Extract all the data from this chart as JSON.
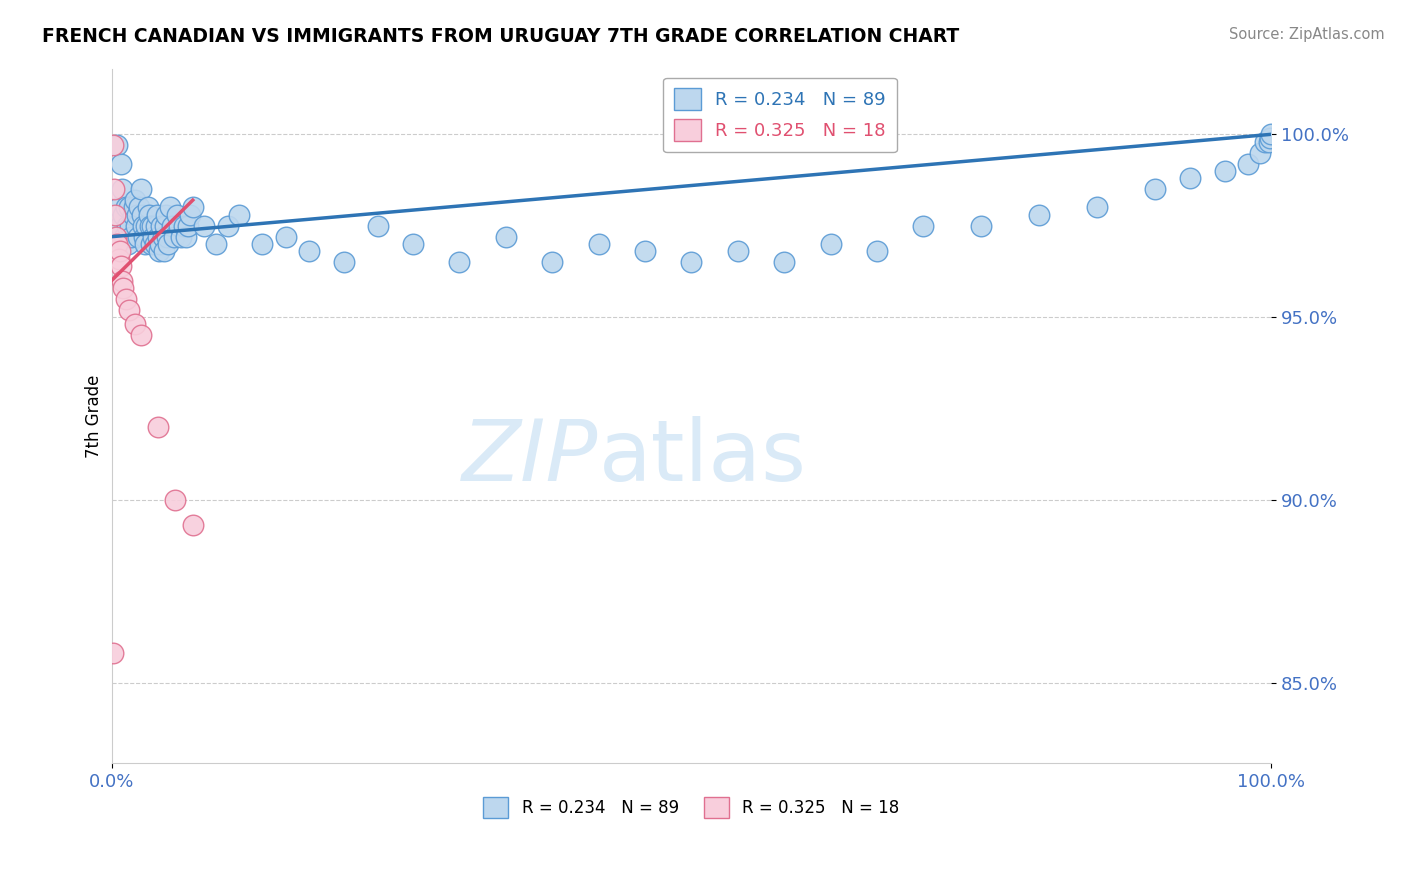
{
  "title": "FRENCH CANADIAN VS IMMIGRANTS FROM URUGUAY 7TH GRADE CORRELATION CHART",
  "source": "Source: ZipAtlas.com",
  "ylabel": "7th Grade",
  "xlim": [
    0.0,
    1.0
  ],
  "ylim": [
    0.828,
    1.018
  ],
  "yticks": [
    0.85,
    0.9,
    0.95,
    1.0
  ],
  "ytick_labels": [
    "85.0%",
    "90.0%",
    "95.0%",
    "100.0%"
  ],
  "xtick_labels": [
    "0.0%",
    "100.0%"
  ],
  "blue_R": 0.234,
  "blue_N": 89,
  "pink_R": 0.325,
  "pink_N": 18,
  "blue_color": "#bdd7ee",
  "blue_edge": "#5b9bd5",
  "pink_color": "#f8cedc",
  "pink_edge": "#e07090",
  "trend_blue": "#2e74b5",
  "trend_pink": "#e05070",
  "watermark_color": "#daeaf7",
  "background": "#ffffff",
  "grid_color": "#cccccc",
  "tick_color": "#4472c4",
  "blue_x": [
    0.005,
    0.006,
    0.007,
    0.008,
    0.009,
    0.01,
    0.011,
    0.012,
    0.013,
    0.014,
    0.015,
    0.016,
    0.017,
    0.018,
    0.019,
    0.02,
    0.021,
    0.022,
    0.023,
    0.024,
    0.025,
    0.026,
    0.027,
    0.028,
    0.029,
    0.03,
    0.031,
    0.032,
    0.033,
    0.034,
    0.035,
    0.036,
    0.037,
    0.038,
    0.039,
    0.04,
    0.041,
    0.042,
    0.043,
    0.044,
    0.045,
    0.046,
    0.047,
    0.048,
    0.049,
    0.05,
    0.052,
    0.054,
    0.056,
    0.058,
    0.06,
    0.062,
    0.064,
    0.066,
    0.068,
    0.07,
    0.08,
    0.09,
    0.1,
    0.11,
    0.13,
    0.15,
    0.17,
    0.2,
    0.23,
    0.26,
    0.3,
    0.34,
    0.38,
    0.42,
    0.46,
    0.5,
    0.54,
    0.58,
    0.62,
    0.66,
    0.7,
    0.75,
    0.8,
    0.85,
    0.9,
    0.93,
    0.96,
    0.98,
    0.99,
    0.995,
    0.998,
    0.999,
    1.0
  ],
  "blue_y": [
    0.997,
    0.98,
    0.975,
    0.992,
    0.985,
    0.978,
    0.972,
    0.98,
    0.975,
    0.97,
    0.98,
    0.975,
    0.972,
    0.978,
    0.98,
    0.982,
    0.975,
    0.978,
    0.972,
    0.98,
    0.985,
    0.978,
    0.975,
    0.972,
    0.97,
    0.975,
    0.98,
    0.978,
    0.975,
    0.97,
    0.975,
    0.972,
    0.97,
    0.975,
    0.978,
    0.972,
    0.968,
    0.97,
    0.975,
    0.972,
    0.968,
    0.975,
    0.978,
    0.972,
    0.97,
    0.98,
    0.975,
    0.972,
    0.978,
    0.975,
    0.972,
    0.975,
    0.972,
    0.975,
    0.978,
    0.98,
    0.975,
    0.97,
    0.975,
    0.978,
    0.97,
    0.972,
    0.968,
    0.965,
    0.975,
    0.97,
    0.965,
    0.972,
    0.965,
    0.97,
    0.968,
    0.965,
    0.968,
    0.965,
    0.97,
    0.968,
    0.975,
    0.975,
    0.978,
    0.98,
    0.985,
    0.988,
    0.99,
    0.992,
    0.995,
    0.998,
    0.998,
    0.999,
    1.0
  ],
  "pink_x": [
    0.001,
    0.002,
    0.003,
    0.004,
    0.005,
    0.006,
    0.007,
    0.008,
    0.009,
    0.01,
    0.012,
    0.015,
    0.02,
    0.025,
    0.04,
    0.055,
    0.07,
    0.001
  ],
  "pink_y": [
    0.997,
    0.985,
    0.978,
    0.972,
    0.97,
    0.966,
    0.968,
    0.964,
    0.96,
    0.958,
    0.955,
    0.952,
    0.948,
    0.945,
    0.92,
    0.9,
    0.893,
    0.858
  ],
  "blue_trend_x": [
    0.0,
    1.0
  ],
  "blue_trend_y": [
    0.972,
    1.0
  ],
  "pink_trend_x": [
    0.0,
    0.07
  ],
  "pink_trend_y": [
    0.96,
    0.982
  ]
}
